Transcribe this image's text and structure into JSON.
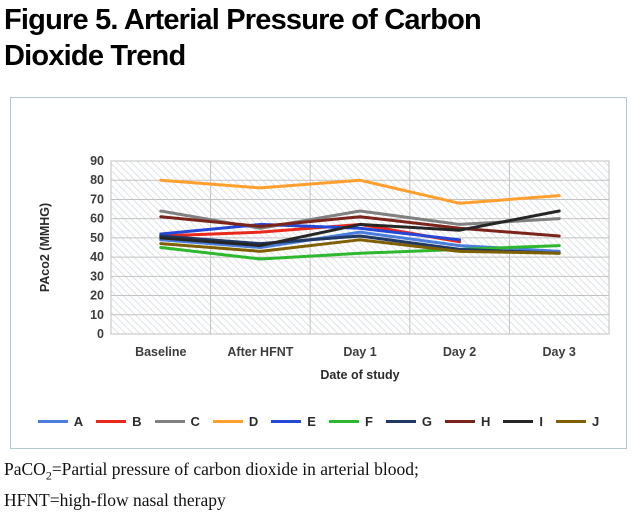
{
  "title": {
    "lines": [
      "Figure 5. Arterial Pressure of Carbon",
      "Dioxide Trend"
    ]
  },
  "chart_data": {
    "type": "line",
    "categories": [
      "Baseline",
      "After HFNT",
      "Day 1",
      "Day 2",
      "Day 3"
    ],
    "series": [
      {
        "name": "A",
        "color": "#4a7edc",
        "values": [
          49,
          45,
          53,
          46,
          43
        ]
      },
      {
        "name": "B",
        "color": "#e8291c",
        "values": [
          51,
          53,
          57,
          48,
          null
        ]
      },
      {
        "name": "C",
        "color": "#808080",
        "values": [
          64,
          55,
          64,
          57,
          60
        ]
      },
      {
        "name": "D",
        "color": "#ffa02e",
        "values": [
          80,
          76,
          80,
          68,
          72
        ]
      },
      {
        "name": "E",
        "color": "#2547d6",
        "values": [
          52,
          57,
          55,
          49,
          null
        ]
      },
      {
        "name": "F",
        "color": "#2eb82e",
        "values": [
          45,
          39,
          42,
          44,
          46
        ]
      },
      {
        "name": "G",
        "color": "#1f3864",
        "values": [
          51,
          47,
          51,
          44,
          42
        ]
      },
      {
        "name": "H",
        "color": "#7b241c",
        "values": [
          61,
          56,
          61,
          55,
          51
        ]
      },
      {
        "name": "I",
        "color": "#262626",
        "values": [
          50,
          46,
          57,
          54,
          64
        ]
      },
      {
        "name": "J",
        "color": "#7f6000",
        "values": [
          47,
          43,
          49,
          43,
          42
        ]
      }
    ],
    "ylabel": "PAco2 (MMHG)",
    "xlabel": "Date of study",
    "ylim": [
      0,
      90
    ],
    "ytick_step": 10,
    "grid": true,
    "legend_position": "bottom",
    "plot_background": "diagonal-hatch"
  },
  "caption": {
    "line1_pre": "PaCO",
    "line1_sub": "2",
    "line1_rest": "=Partial pressure of carbon dioxide in arterial blood;",
    "line2": "HFNT=high-flow nasal therapy"
  }
}
